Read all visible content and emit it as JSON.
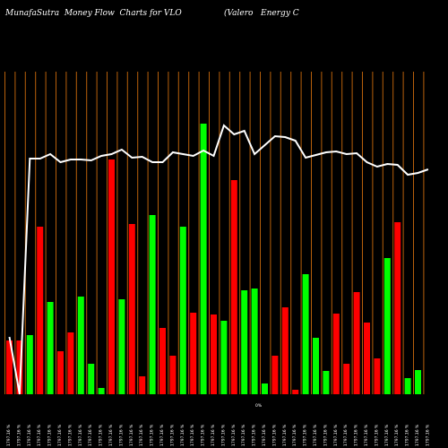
{
  "header": {
    "left": "MunafaSutra  Money Flow  Charts for VLO",
    "right": "(Valero   Energy C"
  },
  "chart_data": {
    "type": "bar",
    "title": "MunafaSutra  Money Flow  Charts for VLO",
    "subtitle": "(Valero   Energy C",
    "categories": [
      "1797.16 %",
      "1797.16 %",
      "1797.16 %",
      "1797.16 %",
      "1797.16 %",
      "1797.16 %",
      "1797.16 %",
      "1797.16 %",
      "1797.16 %",
      "1797.16 %",
      "1797.16 %",
      "1797.16 %",
      "1797.16 %",
      "1797.16 %",
      "1797.16 %",
      "1797.16 %",
      "1797.16 %",
      "1797.16 %",
      "1797.16 %",
      "1797.16 %",
      "1797.16 %",
      "1797.16 %",
      "1797.16 %",
      "1797.16 %",
      "1797.16 %",
      "1797.16 %",
      "1797.16 %",
      "1797.16 %",
      "1797.16 %",
      "1797.16 %",
      "1797.16 %",
      "1797.16 %",
      "1797.16 %",
      "1797.16 %",
      "1797.16 %",
      "1797.16 %",
      "1797.16 %",
      "1797.16 %",
      "1797.16 %",
      "1797.16 %",
      "1797.16 %",
      "1797.16 %"
    ],
    "center_label": "0%",
    "bars": [
      {
        "value": 60,
        "color": "red"
      },
      {
        "value": 60,
        "color": "red"
      },
      {
        "value": 66,
        "color": "green"
      },
      {
        "value": 187,
        "color": "red"
      },
      {
        "value": 103,
        "color": "green"
      },
      {
        "value": 48,
        "color": "red"
      },
      {
        "value": 69,
        "color": "red"
      },
      {
        "value": 109,
        "color": "green"
      },
      {
        "value": 34,
        "color": "green"
      },
      {
        "value": 7,
        "color": "green"
      },
      {
        "value": 262,
        "color": "red"
      },
      {
        "value": 106,
        "color": "green"
      },
      {
        "value": 190,
        "color": "red"
      },
      {
        "value": 20,
        "color": "red"
      },
      {
        "value": 200,
        "color": "green"
      },
      {
        "value": 74,
        "color": "red"
      },
      {
        "value": 43,
        "color": "red"
      },
      {
        "value": 187,
        "color": "green"
      },
      {
        "value": 91,
        "color": "red"
      },
      {
        "value": 302,
        "color": "green"
      },
      {
        "value": 89,
        "color": "red"
      },
      {
        "value": 82,
        "color": "green"
      },
      {
        "value": 239,
        "color": "red"
      },
      {
        "value": 116,
        "color": "green"
      },
      {
        "value": 118,
        "color": "green"
      },
      {
        "value": 12,
        "color": "green"
      },
      {
        "value": 43,
        "color": "red"
      },
      {
        "value": 97,
        "color": "red"
      },
      {
        "value": 5,
        "color": "red"
      },
      {
        "value": 134,
        "color": "green"
      },
      {
        "value": 63,
        "color": "green"
      },
      {
        "value": 26,
        "color": "green"
      },
      {
        "value": 90,
        "color": "red"
      },
      {
        "value": 34,
        "color": "red"
      },
      {
        "value": 114,
        "color": "red"
      },
      {
        "value": 80,
        "color": "red"
      },
      {
        "value": 40,
        "color": "red"
      },
      {
        "value": 152,
        "color": "green"
      },
      {
        "value": 192,
        "color": "red"
      },
      {
        "value": 18,
        "color": "green"
      },
      {
        "value": 27,
        "color": "green"
      }
    ],
    "line": [
      64,
      0,
      263,
      263,
      268,
      259,
      262,
      262,
      261,
      266,
      268,
      273,
      264,
      265,
      259,
      259,
      270,
      268,
      266,
      272,
      266,
      300,
      290,
      294,
      268,
      278,
      288,
      287,
      283,
      264,
      267,
      270,
      271,
      268,
      269,
      259,
      254,
      257,
      256,
      245,
      247,
      251
    ],
    "colors": {
      "background": "#000000",
      "grid": "#b8600b",
      "up": "#00ff00",
      "down": "#ff0000",
      "line": "#ffffff",
      "text": "#ffffff"
    }
  }
}
